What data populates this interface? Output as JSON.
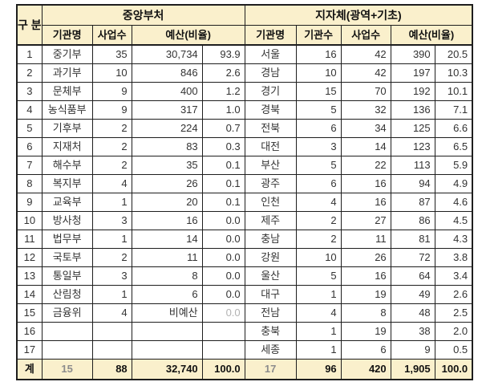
{
  "chart_data": {
    "type": "table",
    "group_column_label": "구 분",
    "sections": [
      {
        "title": "중앙부처",
        "columns": [
          "기관명",
          "사업수",
          "예산(비율)"
        ]
      },
      {
        "title": "지자체(광역+기초)",
        "columns": [
          "기관명",
          "기관수",
          "사업수",
          "예산(비율)"
        ]
      }
    ],
    "rows": [
      [
        "1",
        "중기부",
        "35",
        "30,734",
        "93.9",
        "서울",
        "16",
        "42",
        "390",
        "20.5"
      ],
      [
        "2",
        "과기부",
        "10",
        "846",
        "2.6",
        "경남",
        "10",
        "42",
        "197",
        "10.3"
      ],
      [
        "3",
        "문체부",
        "9",
        "400",
        "1.2",
        "경기",
        "15",
        "70",
        "192",
        "10.1"
      ],
      [
        "4",
        "농식품부",
        "9",
        "317",
        "1.0",
        "경북",
        "5",
        "32",
        "136",
        "7.1"
      ],
      [
        "5",
        "기후부",
        "2",
        "224",
        "0.7",
        "전북",
        "6",
        "34",
        "125",
        "6.6"
      ],
      [
        "6",
        "지재처",
        "2",
        "83",
        "0.3",
        "대전",
        "3",
        "14",
        "123",
        "6.5"
      ],
      [
        "7",
        "해수부",
        "2",
        "35",
        "0.1",
        "부산",
        "5",
        "22",
        "113",
        "5.9"
      ],
      [
        "8",
        "복지부",
        "4",
        "26",
        "0.1",
        "광주",
        "6",
        "16",
        "94",
        "4.9"
      ],
      [
        "9",
        "교육부",
        "1",
        "20",
        "0.1",
        "인천",
        "4",
        "16",
        "87",
        "4.6"
      ],
      [
        "10",
        "방사청",
        "3",
        "16",
        "0.0",
        "제주",
        "2",
        "27",
        "86",
        "4.5"
      ],
      [
        "11",
        "법무부",
        "1",
        "14",
        "0.0",
        "충남",
        "2",
        "11",
        "81",
        "4.3"
      ],
      [
        "12",
        "국토부",
        "2",
        "11",
        "0.0",
        "강원",
        "10",
        "26",
        "72",
        "3.8"
      ],
      [
        "13",
        "통일부",
        "3",
        "8",
        "0.0",
        "울산",
        "5",
        "16",
        "64",
        "3.4"
      ],
      [
        "14",
        "산림청",
        "1",
        "6",
        "0.0",
        "대구",
        "1",
        "19",
        "49",
        "2.6"
      ],
      [
        "15",
        "금융위",
        "4",
        "비예산",
        "0.0",
        "전남",
        "4",
        "8",
        "48",
        "2.5"
      ],
      [
        "16",
        "",
        "",
        "",
        "",
        "충북",
        "1",
        "19",
        "38",
        "2.0"
      ],
      [
        "17",
        "",
        "",
        "",
        "",
        "세종",
        "1",
        "6",
        "9",
        "0.5"
      ]
    ],
    "muted_cells": [
      [
        14,
        4
      ]
    ],
    "total_row": [
      "계",
      "15",
      "88",
      "32,740",
      "100.0",
      "17",
      "96",
      "420",
      "1,905",
      "100.0"
    ]
  },
  "colors": {
    "header_bg": "#FAF0CC",
    "total_bg": "#FAF0CC",
    "border": "#1E1E1E",
    "data_text": "#333333",
    "header_text": "#111111",
    "total_muted_text": "#8C8C8C",
    "non_budget_ratio_text": "#B3B3B3"
  }
}
